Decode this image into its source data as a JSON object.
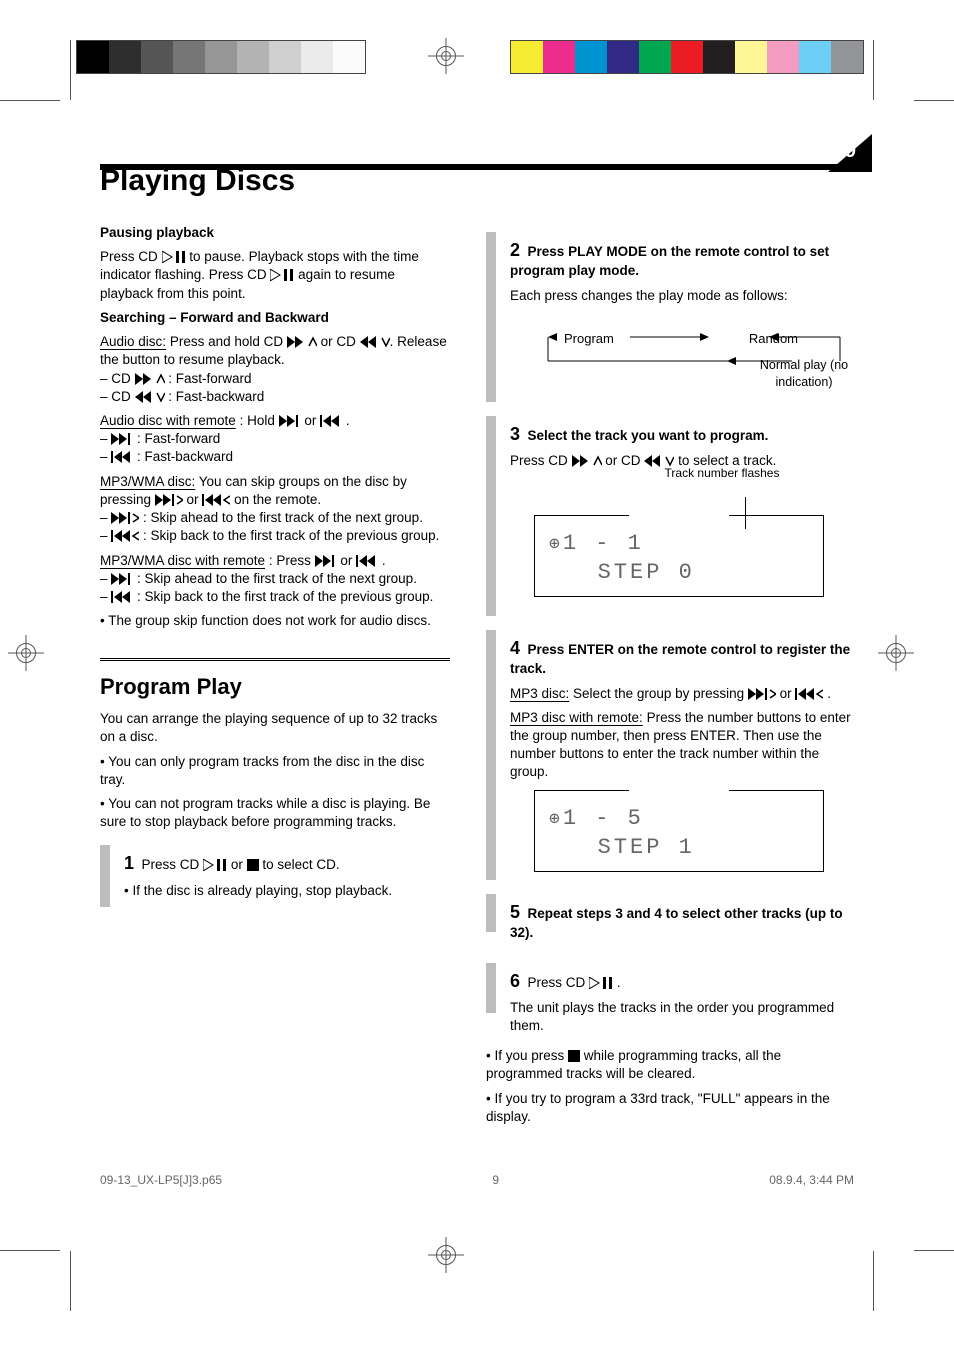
{
  "swatches": {
    "gray": [
      "#000000",
      "#2e2e2e",
      "#555555",
      "#767676",
      "#969696",
      "#b3b3b3",
      "#cfcfcf",
      "#ebebeb",
      "#fbfbfb"
    ],
    "color": [
      "#f6ec33",
      "#ec2d8e",
      "#0093d1",
      "#312a85",
      "#00a650",
      "#ec1c24",
      "#231f20",
      "#fff697",
      "#f49bc1",
      "#6dcff6",
      "#949599"
    ]
  },
  "page_number": "9",
  "title": "Playing Discs",
  "left": {
    "pause_heading": "Pausing playback",
    "pause_body_a": "Press CD ",
    "pause_body_b": " to pause. Playback stops with the time indicator flashing. Press CD ",
    "pause_body_c": " again to resume playback from this point.",
    "searching_heading": "Searching – Forward and Backward",
    "audio_disc_label": "Audio disc:",
    "audio_disc_body_a": " Press and hold CD  ",
    "audio_disc_body_b": "  or CD  ",
    "audio_disc_body_c": "Release the button to resume playback.",
    "audio_disc_body_d": "– CD  ",
    "audio_disc_body_d_t": ": Fast-forward",
    "audio_disc_body_e": "– CD  ",
    "audio_disc_body_e_t": ": Fast-backward",
    "audio_rc_label": "Audio disc with remote",
    "audio_rc_body_a": ": Hold  ",
    "audio_rc_body_b": "  or  ",
    "audio_rc_body_c": ".",
    "audio_rc_body_d": "–  ",
    "audio_rc_body_d_t": ": Fast-forward",
    "audio_rc_body_e": "–  ",
    "audio_rc_body_e_t": ": Fast-backward",
    "mp3_label": "MP3/WMA disc:",
    "mp3_body_a": " You can skip groups on the disc by pressing  ",
    "mp3_body_b": "  or  ",
    "mp3_body_c": "  on the remote.",
    "mp3_body_d": "–  ",
    "mp3_body_d_t": ": Skip ahead to the first track of the next group.",
    "mp3_body_e": "–  ",
    "mp3_body_e_t": ": Skip back to the first track of the previous group.",
    "mp3_rc_label": "MP3/WMA disc with remote",
    "mp3_rc_body_a": ": Press ",
    "mp3_rc_body_b": " or  ",
    "mp3_rc_body_c": ".",
    "mp3_rc_body_d": "–  ",
    "mp3_rc_body_d_t": ": Skip ahead to the first track of the next group.",
    "mp3_rc_body_e": "–  ",
    "mp3_rc_body_e_t": ": Skip back to the first track of the previous group.",
    "mp3_note": "• The group skip function does not work for audio discs.",
    "prog_h1": "Program Play",
    "prog_intro": "You can arrange the playing sequence of up to 32 tracks on a disc.",
    "prog_note1": "• You can only program tracks from the disc in the disc tray.",
    "prog_note2": "• You can not program tracks while a disc is playing. Be sure to stop playback before programming tracks.",
    "step1_num": "1",
    "step1_body_a": "Press CD ",
    "step1_body_b": " or ",
    "step1_body_c": " to select CD.",
    "step1_note": "• If the disc is already playing, stop playback."
  },
  "right": {
    "step2_num": "2",
    "step2_body": "Press PLAY MODE on the remote control to set program play mode.",
    "step2_note": "Each press changes the play mode as follows:",
    "loop_lbl_l": "Program",
    "loop_lbl_r": "Random",
    "loop_lbl_m": "Normal play (no indication)",
    "step3_num": "3",
    "step3_body": "Select the track you want to program.",
    "step3_note_a": "Press CD ",
    "step3_note_b": " or CD ",
    "step3_note_c": " to select a track.",
    "lcd1_callout": "Track number flashes",
    "lcd1_line1": "1 -  1",
    "lcd1_line2": "STEP   0",
    "step4_num": "4",
    "step4_body": "Press ENTER on the remote control to register the track.",
    "mp3_sel_label": "MP3 disc:",
    "mp3_sel_body_a": " Select the group by pressing ",
    "mp3_sel_body_b": " or ",
    "mp3_sel_body_c": ".",
    "mp3_sel_label2": "MP3 disc with remote:",
    "mp3_sel_body2": " Press the number buttons to enter the group number, then press ENTER. Then use the number buttons to enter the track number within the group.",
    "lcd2_line1": "1 -  5",
    "lcd2_line2": "STEP   1",
    "step5_num": "5",
    "step5_body": "Repeat steps 3 and 4 to select other tracks (up to 32).",
    "step6_num": "6",
    "step6_body_a": "Press CD ",
    "step6_body_b": ".",
    "step6_note": "The unit plays the tracks in the order you programmed them.",
    "endnote1_a": "• If you press ",
    "endnote1_b": " while programming tracks, all the programmed tracks will be cleared.",
    "endnote2": "• If you try to program a 33rd track, \"FULL\" appears in the display."
  },
  "footer": {
    "left": "09-13_UX-LP5[J]3.p65",
    "mid": "9",
    "right": "08.9.4, 3:44 PM"
  }
}
